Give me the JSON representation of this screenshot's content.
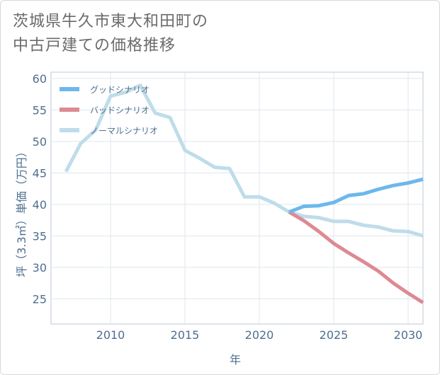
{
  "title": {
    "line1": "茨城県牛久市東大和田町の",
    "line2": "中古戸建ての価格推移"
  },
  "chart_data": {
    "type": "line",
    "xlabel": "年",
    "ylabel": "坪（3.3㎡）単価（万円）",
    "xlim": [
      2006,
      2031
    ],
    "ylim": [
      21,
      61
    ],
    "xticks": [
      2010,
      2015,
      2020,
      2025,
      2030
    ],
    "yticks": [
      25,
      30,
      35,
      40,
      45,
      50,
      55,
      60
    ],
    "grid": true,
    "legend_position": "top-left",
    "series": [
      {
        "name": "グッドシナリオ",
        "color": "#6cb8ec",
        "x": [
          2022,
          2023,
          2024,
          2025,
          2026,
          2027,
          2028,
          2029,
          2030,
          2031
        ],
        "y": [
          38.8,
          39.7,
          39.8,
          40.3,
          41.4,
          41.7,
          42.4,
          43.0,
          43.4,
          44.0
        ]
      },
      {
        "name": "バッドシナリオ",
        "color": "#dd8a92",
        "x": [
          2022,
          2023,
          2024,
          2025,
          2026,
          2027,
          2028,
          2029,
          2030,
          2031
        ],
        "y": [
          38.8,
          37.4,
          35.7,
          33.8,
          32.3,
          30.9,
          29.4,
          27.5,
          25.9,
          24.4
        ]
      },
      {
        "name": "ノーマルシナリオ",
        "color": "#bfdcea",
        "x": [
          2007,
          2008,
          2009,
          2010,
          2011,
          2012,
          2013,
          2014,
          2015,
          2016,
          2017,
          2018,
          2019,
          2020,
          2021,
          2022,
          2023,
          2024,
          2025,
          2026,
          2027,
          2028,
          2029,
          2030,
          2031
        ],
        "y": [
          45.2,
          49.7,
          51.8,
          57.2,
          57.8,
          58.9,
          54.5,
          53.8,
          48.6,
          47.3,
          45.9,
          45.7,
          41.2,
          41.2,
          40.2,
          38.8,
          38.1,
          37.9,
          37.3,
          37.3,
          36.7,
          36.4,
          35.8,
          35.7,
          35.0
        ]
      }
    ]
  }
}
